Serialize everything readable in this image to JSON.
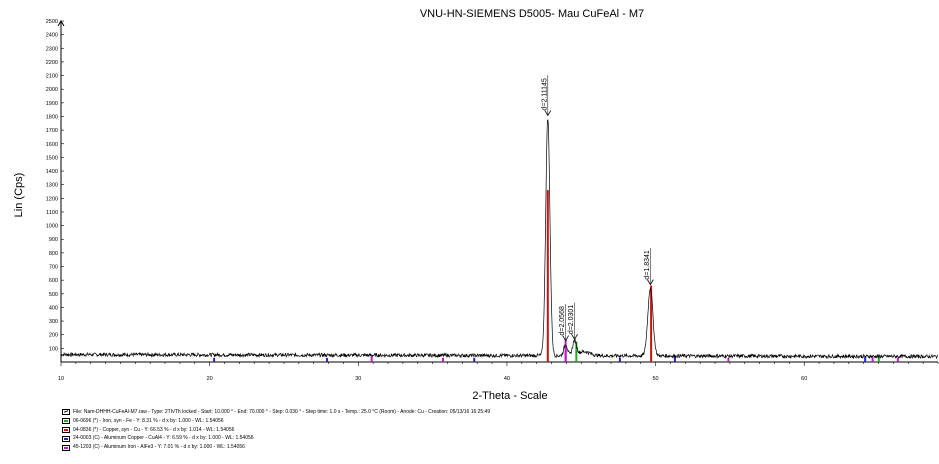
{
  "chart_data": {
    "type": "line",
    "title": "VNU-HN-SIEMENS D5005- Mau CuFeAl - M7",
    "xlabel": "2-Theta - Scale",
    "ylabel": "Lin (Cps)",
    "xlim": [
      10,
      69
    ],
    "ylim": [
      0,
      2500
    ],
    "x_ticks": [
      10,
      20,
      30,
      40,
      50,
      60
    ],
    "y_ticks": [
      100,
      200,
      300,
      400,
      500,
      600,
      700,
      800,
      900,
      1000,
      1100,
      1200,
      1300,
      1400,
      1500,
      1600,
      1700,
      1800,
      1900,
      2000,
      2100,
      2200,
      2300,
      2400,
      2500
    ],
    "baseline": 55,
    "peaks": [
      {
        "x": 42.75,
        "y": 1800,
        "label": "d=2.11145"
      },
      {
        "x": 43.95,
        "y": 150,
        "label": "d=2.0568"
      },
      {
        "x": 44.55,
        "y": 160,
        "label": "d=2.0301"
      },
      {
        "x": 49.65,
        "y": 560,
        "label": "d=1.8341"
      }
    ],
    "series": [
      {
        "name": "File: Nam-DHHH-CuFeAl-M7.raw - Type: 2Th/Th locked - Start: 10.000 ° - End: 70.000 ° - Step: 0.030 ° - Step time: 1.0 s - Temp.: 25.0 °C (Room) - Anode: Cu - Creation: 05/13/16 16:25:49",
        "color": "#000000",
        "kind": "pattern"
      },
      {
        "name": "06-0696 (*) - Iron, syn - Fe - Y: 8.31 % - d x by: 1.000 - WL: 1.54056",
        "color": "#22aa22",
        "kind": "phase",
        "sticks": [
          {
            "x": 44.67,
            "y": 150
          },
          {
            "x": 65.02,
            "y": 40
          }
        ]
      },
      {
        "name": "04-0836 (*) - Copper, syn - Cu - Y: 66.53 % - d x by: 1.014 - WL: 1.54056",
        "color": "#cc1111",
        "kind": "phase",
        "sticks": [
          {
            "x": 42.75,
            "y": 1260
          },
          {
            "x": 49.7,
            "y": 560
          }
        ]
      },
      {
        "name": "24-0003 (C) - Aluminum Copper - CuAl4 - Y: 6.59 % - d x by: 1.000 - WL: 1.54056",
        "color": "#2222cc",
        "kind": "phase",
        "sticks": [
          {
            "x": 20.3,
            "y": 30
          },
          {
            "x": 27.9,
            "y": 30
          },
          {
            "x": 37.8,
            "y": 30
          },
          {
            "x": 43.95,
            "y": 115
          },
          {
            "x": 47.6,
            "y": 30
          },
          {
            "x": 51.3,
            "y": 40
          },
          {
            "x": 64.1,
            "y": 40
          }
        ]
      },
      {
        "name": "45-1203 (C) - Aluminum Iron - AlFe3 - Y: 7.01 % - d x by: 1.000 - WL: 1.54056",
        "color": "#cc11cc",
        "kind": "phase",
        "sticks": [
          {
            "x": 30.9,
            "y": 40
          },
          {
            "x": 35.7,
            "y": 30
          },
          {
            "x": 43.95,
            "y": 165
          },
          {
            "x": 54.9,
            "y": 30
          },
          {
            "x": 64.6,
            "y": 35
          },
          {
            "x": 66.3,
            "y": 30
          }
        ]
      }
    ]
  }
}
